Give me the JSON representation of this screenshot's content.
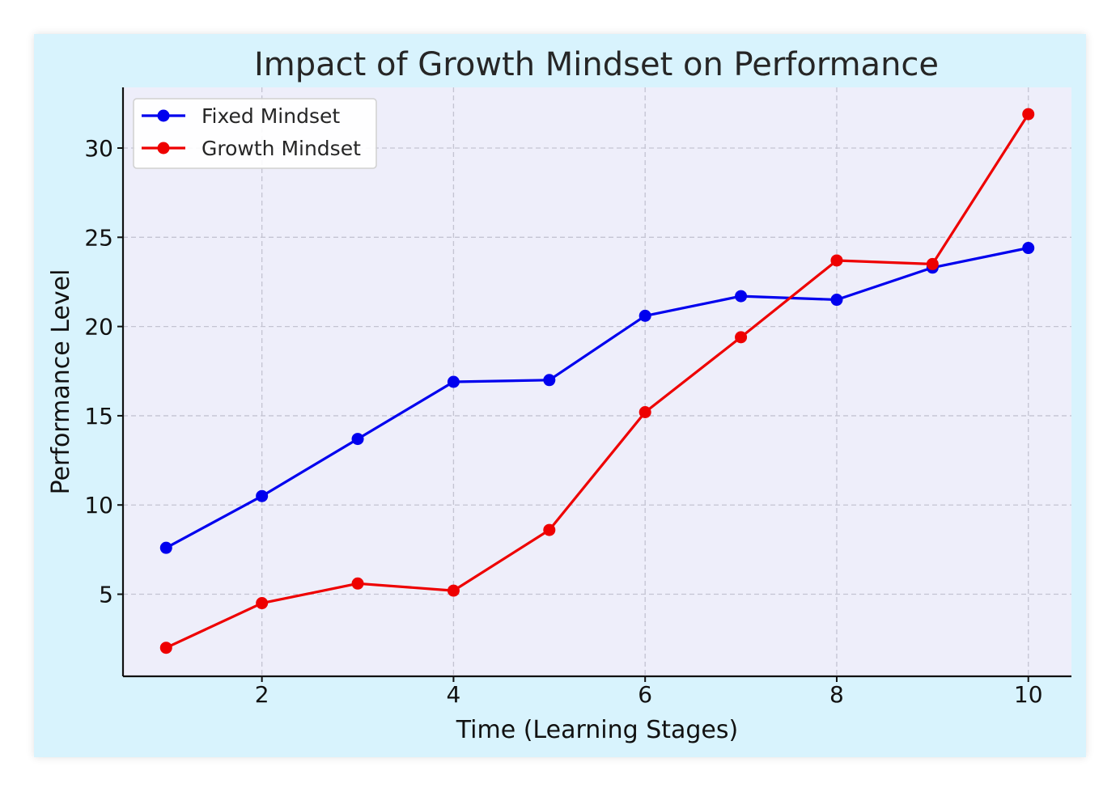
{
  "colors": {
    "figure_background": "#d8f3fd",
    "plot_background": "#eeeefa",
    "grid": "#c4c4d2",
    "fixed": "#0000ee",
    "growth": "#ee0000"
  },
  "chart_data": {
    "type": "line",
    "title": "Impact of Growth Mindset on Performance",
    "xlabel": "Time (Learning Stages)",
    "ylabel": "Performance Level",
    "x": [
      1,
      2,
      3,
      4,
      5,
      6,
      7,
      8,
      9,
      10
    ],
    "xlim": [
      0.55,
      10.45
    ],
    "ylim": [
      0.4,
      33.4
    ],
    "xticks": [
      2,
      4,
      6,
      8,
      10
    ],
    "yticks": [
      5,
      10,
      15,
      20,
      25,
      30
    ],
    "grid": true,
    "grid_style": "dashed",
    "legend_position": "upper-left",
    "series": [
      {
        "name": "Fixed Mindset",
        "color": "#0000ee",
        "values": [
          7.6,
          10.5,
          13.7,
          16.9,
          17.0,
          20.6,
          21.7,
          21.5,
          23.3,
          24.4
        ]
      },
      {
        "name": "Growth Mindset",
        "color": "#ee0000",
        "values": [
          2.0,
          4.5,
          5.6,
          5.2,
          8.6,
          15.2,
          19.4,
          23.7,
          23.5,
          31.9
        ]
      }
    ]
  }
}
